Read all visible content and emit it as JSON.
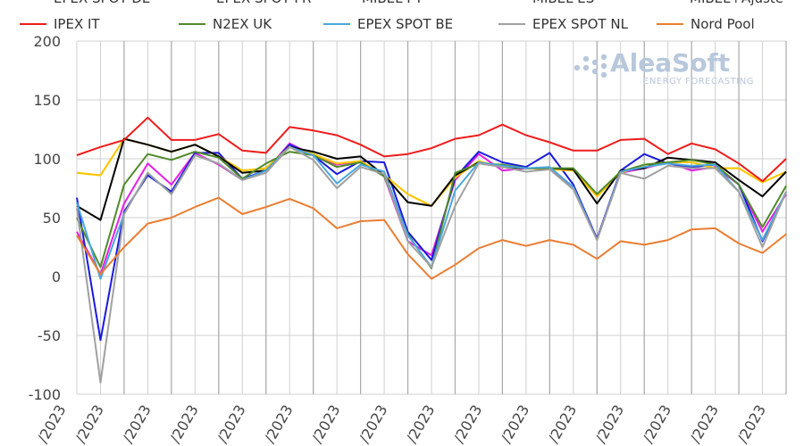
{
  "chart_data": {
    "type": "line",
    "ylim": [
      -100,
      200
    ],
    "yticks": [
      -100,
      -50,
      0,
      50,
      100,
      150,
      200
    ],
    "grid": true,
    "legend_placement": "top",
    "legend_partial_row": [
      "EPEX SPOT DE",
      "EPEX SPOT FR",
      "MIBEL PT",
      "MIBEL ES",
      "MIBEL+Ajuste"
    ],
    "x_tick_labels_visible": [
      "/2023",
      "/2023",
      "/2023",
      "/2023",
      "/2023",
      "/2023",
      "/2023",
      "/2023",
      "/2023",
      "/2023",
      "/2023",
      "/2023",
      "/2023",
      "/2023",
      "/2023",
      "/2023"
    ],
    "series": [
      {
        "name": "",
        "color": "#e61ee6",
        "values": [
          38,
          2,
          62,
          96,
          78,
          105,
          95,
          82,
          90,
          113,
          103,
          95,
          98,
          85,
          30,
          18,
          82,
          104,
          90,
          92,
          92,
          75,
          32,
          88,
          92,
          97,
          90,
          93,
          78,
          38,
          70
        ]
      },
      {
        "name": "",
        "color": "#1a1adc",
        "values": [
          67,
          -54,
          55,
          86,
          72,
          105,
          105,
          83,
          90,
          112,
          103,
          87,
          98,
          97,
          38,
          14,
          84,
          106,
          97,
          93,
          105,
          78,
          32,
          90,
          104,
          96,
          93,
          95,
          78,
          30,
          72
        ]
      },
      {
        "name": "",
        "color": "#eeee00",
        "values": [
          88,
          86,
          117,
          112,
          106,
          112,
          102,
          90,
          92,
          110,
          104,
          96,
          98,
          86,
          70,
          60,
          84,
          98,
          93,
          92,
          91,
          90,
          68,
          88,
          95,
          97,
          97,
          92,
          92,
          80,
          89
        ]
      },
      {
        "name": "",
        "color": "#ffc400",
        "values": [
          88,
          86,
          117,
          112,
          106,
          112,
          102,
          90,
          92,
          110,
          104,
          96,
          98,
          86,
          70,
          60,
          84,
          98,
          93,
          92,
          91,
          90,
          68,
          88,
          95,
          97,
          97,
          92,
          92,
          80,
          89
        ]
      },
      {
        "name": "",
        "color": "#000000",
        "values": [
          60,
          48,
          117,
          112,
          106,
          112,
          102,
          88,
          90,
          110,
          106,
          100,
          102,
          86,
          63,
          60,
          86,
          97,
          93,
          92,
          92,
          91,
          62,
          90,
          92,
          101,
          99,
          97,
          82,
          68,
          89
        ]
      },
      {
        "name": "IPEX IT",
        "color": "#ee1c1c",
        "values": [
          103,
          110,
          116,
          135,
          116,
          116,
          121,
          107,
          105,
          127,
          124,
          120,
          112,
          102,
          104,
          109,
          117,
          120,
          129,
          120,
          114,
          107,
          107,
          116,
          117,
          104,
          113,
          108,
          96,
          81,
          100
        ]
      },
      {
        "name": "N2EX UK",
        "color": "#4f8a2a",
        "values": [
          50,
          8,
          78,
          104,
          99,
          106,
          101,
          83,
          96,
          106,
          103,
          93,
          97,
          85,
          36,
          7,
          88,
          96,
          95,
          92,
          92,
          92,
          70,
          89,
          95,
          97,
          99,
          95,
          78,
          42,
          77
        ]
      },
      {
        "name": "EPEX SPOT BE",
        "color": "#4aa8dc",
        "values": [
          63,
          -2,
          53,
          88,
          70,
          103,
          96,
          82,
          90,
          110,
          103,
          79,
          95,
          89,
          35,
          8,
          73,
          97,
          94,
          92,
          93,
          76,
          31,
          89,
          93,
          96,
          94,
          95,
          72,
          31,
          72
        ]
      },
      {
        "name": "EPEX SPOT NL",
        "color": "#a0a0a0",
        "values": [
          58,
          -90,
          53,
          88,
          70,
          103,
          96,
          82,
          88,
          110,
          99,
          75,
          93,
          87,
          30,
          8,
          60,
          96,
          93,
          89,
          91,
          74,
          31,
          88,
          83,
          94,
          92,
          92,
          72,
          25,
          72
        ]
      },
      {
        "name": "Nord Pool",
        "color": "#ea7d32",
        "values": [
          35,
          2,
          25,
          45,
          50,
          59,
          67,
          53,
          59,
          66,
          58,
          41,
          47,
          48,
          19,
          -2,
          10,
          24,
          31,
          26,
          31,
          27,
          15,
          30,
          27,
          31,
          40,
          41,
          28,
          20,
          36
        ]
      }
    ]
  },
  "legend": {
    "items": [
      {
        "label": "IPEX IT",
        "color": "#ee1c1c"
      },
      {
        "label": "N2EX UK",
        "color": "#4f8a2a"
      },
      {
        "label": "EPEX SPOT BE",
        "color": "#4aa8dc"
      },
      {
        "label": "EPEX SPOT NL",
        "color": "#a0a0a0"
      },
      {
        "label": "Nord Pool",
        "color": "#ea7d32"
      }
    ]
  },
  "logo": {
    "main": "AleaSoft",
    "sub": "ENERGY FORECASTING"
  }
}
